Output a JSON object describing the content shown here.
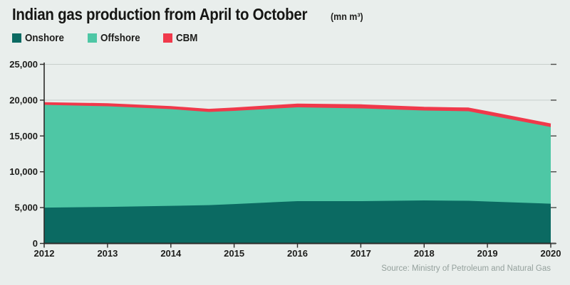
{
  "title": {
    "main": "Indian gas production from April to October",
    "unit": "(mn m³)"
  },
  "legend": [
    {
      "label": "Onshore",
      "color": "#0b6a62"
    },
    {
      "label": "Offshore",
      "color": "#4ec7a5"
    },
    {
      "label": "CBM",
      "color": "#f0394b"
    }
  ],
  "source": "Source: Ministry of Petroleum and Natural Gas",
  "axes": {
    "y_ticks": [
      {
        "label": "0",
        "value": 0
      },
      {
        "label": "5,000",
        "value": 5000
      },
      {
        "label": "10,000",
        "value": 10000
      },
      {
        "label": "15,000",
        "value": 15000
      },
      {
        "label": "20,000",
        "value": 20000
      },
      {
        "label": "25,000",
        "value": 25000
      }
    ],
    "x_ticks": [
      {
        "label": "2012",
        "value": 2012
      },
      {
        "label": "2013",
        "value": 2013
      },
      {
        "label": "2014",
        "value": 2014
      },
      {
        "label": "2015",
        "value": 2015
      },
      {
        "label": "2016",
        "value": 2016
      },
      {
        "label": "2017",
        "value": 2017
      },
      {
        "label": "2018",
        "value": 2018
      },
      {
        "label": "2019",
        "value": 2019
      },
      {
        "label": "2020",
        "value": 2020
      }
    ]
  },
  "chart_data": {
    "type": "area",
    "stacked": true,
    "title": "Indian gas production from April to October (mn m³)",
    "xlabel": "",
    "ylabel": "",
    "ylim": [
      0,
      25000
    ],
    "xlim": [
      2012,
      2020
    ],
    "grid": true,
    "legend_position": "top-left",
    "x": [
      2012,
      2013,
      2014,
      2014.6,
      2015,
      2016,
      2017,
      2018,
      2018.7,
      2019,
      2020
    ],
    "series": [
      {
        "name": "Onshore",
        "color": "#0b6a62",
        "values": [
          5000,
          5100,
          5250,
          5350,
          5500,
          5900,
          5900,
          6000,
          5950,
          5850,
          5550
        ]
      },
      {
        "name": "Offshore",
        "color": "#4ec7a5",
        "values": [
          14350,
          14050,
          13500,
          13000,
          13000,
          13100,
          12950,
          12550,
          12500,
          12100,
          10700
        ]
      },
      {
        "name": "CBM",
        "color": "#f0394b",
        "values": [
          250,
          300,
          300,
          320,
          350,
          400,
          450,
          400,
          400,
          400,
          380
        ]
      }
    ],
    "totals": [
      19600,
      19450,
      19050,
      18670,
      18850,
      19400,
      19300,
      18950,
      18850,
      18350,
      16630
    ]
  }
}
